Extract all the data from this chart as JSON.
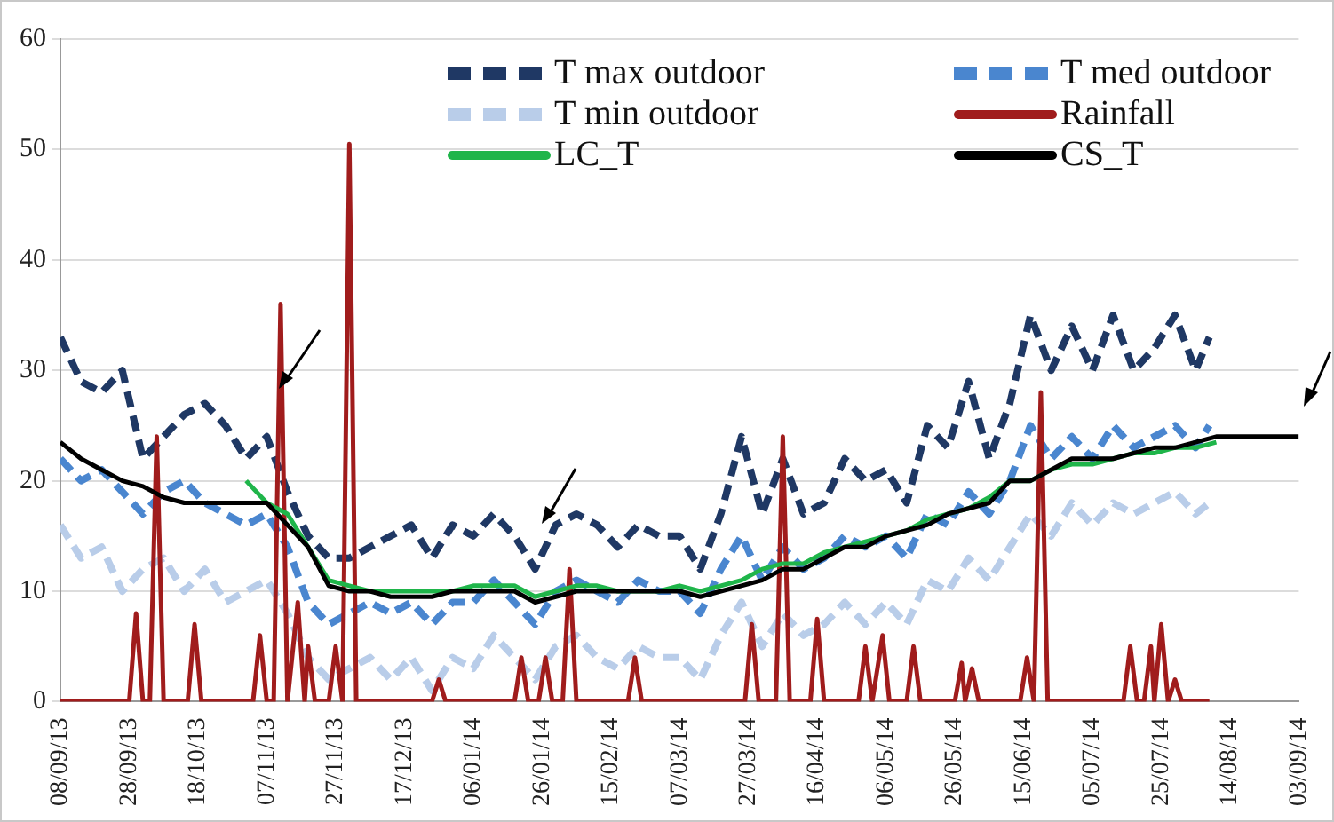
{
  "chart_data": {
    "type": "line",
    "ylim": [
      0,
      60
    ],
    "yticks": [
      0,
      10,
      20,
      30,
      40,
      50,
      60
    ],
    "xlim": [
      "2013-09-08",
      "2014-09-03"
    ],
    "xticks": [
      {
        "value": "2013-09-08",
        "label": "08/09/13"
      },
      {
        "value": "2013-09-28",
        "label": "28/09/13"
      },
      {
        "value": "2013-10-18",
        "label": "18/10/13"
      },
      {
        "value": "2013-11-07",
        "label": "07/11/13"
      },
      {
        "value": "2013-11-27",
        "label": "27/11/13"
      },
      {
        "value": "2013-12-17",
        "label": "17/12/13"
      },
      {
        "value": "2014-01-06",
        "label": "06/01/14"
      },
      {
        "value": "2014-01-26",
        "label": "26/01/14"
      },
      {
        "value": "2014-02-15",
        "label": "15/02/14"
      },
      {
        "value": "2014-03-07",
        "label": "07/03/14"
      },
      {
        "value": "2014-03-27",
        "label": "27/03/14"
      },
      {
        "value": "2014-04-16",
        "label": "16/04/14"
      },
      {
        "value": "2014-05-06",
        "label": "06/05/14"
      },
      {
        "value": "2014-05-26",
        "label": "26/05/14"
      },
      {
        "value": "2014-06-15",
        "label": "15/06/14"
      },
      {
        "value": "2014-07-05",
        "label": "05/07/14"
      },
      {
        "value": "2014-07-25",
        "label": "25/07/14"
      },
      {
        "value": "2014-08-14",
        "label": "14/08/14"
      },
      {
        "value": "2014-09-03",
        "label": "03/09/14"
      }
    ],
    "grid": "y",
    "legend": "top right",
    "marker": "none",
    "x": [
      "2013-09-08",
      "2013-09-14",
      "2013-09-20",
      "2013-09-26",
      "2013-10-02",
      "2013-10-08",
      "2013-10-14",
      "2013-10-20",
      "2013-10-26",
      "2013-11-01",
      "2013-11-07",
      "2013-11-13",
      "2013-11-19",
      "2013-11-25",
      "2013-12-01",
      "2013-12-07",
      "2013-12-13",
      "2013-12-19",
      "2013-12-25",
      "2013-12-31",
      "2014-01-06",
      "2014-01-12",
      "2014-01-18",
      "2014-01-24",
      "2014-01-30",
      "2014-02-05",
      "2014-02-11",
      "2014-02-17",
      "2014-02-23",
      "2014-03-01",
      "2014-03-07",
      "2014-03-13",
      "2014-03-19",
      "2014-03-25",
      "2014-03-31",
      "2014-04-06",
      "2014-04-12",
      "2014-04-18",
      "2014-04-24",
      "2014-04-30",
      "2014-05-06",
      "2014-05-12",
      "2014-05-18",
      "2014-05-24",
      "2014-05-30",
      "2014-06-05",
      "2014-06-11",
      "2014-06-17",
      "2014-06-23",
      "2014-06-29",
      "2014-07-05",
      "2014-07-11",
      "2014-07-17",
      "2014-07-23",
      "2014-07-29",
      "2014-08-04",
      "2014-08-08"
    ],
    "series": [
      {
        "name": "T max outdoor",
        "color": "#1f3864",
        "line_style": "dashed",
        "values": [
          33,
          29,
          28,
          30,
          22,
          24,
          26,
          27,
          25,
          22,
          24,
          19,
          15,
          13,
          13,
          14,
          15,
          16,
          13,
          16,
          15,
          17,
          15,
          12,
          16,
          17,
          16,
          14,
          16,
          15,
          15,
          12,
          17,
          24,
          17,
          22,
          17,
          18,
          22,
          20,
          21,
          18,
          25,
          23,
          29,
          22,
          27,
          35,
          30,
          34,
          30,
          35,
          30,
          32,
          35,
          30,
          33
        ]
      },
      {
        "name": "T med outdoor",
        "color": "#4a86cf",
        "line_style": "dashed",
        "values": [
          22,
          20,
          21,
          19,
          17,
          19,
          20,
          18,
          17,
          16,
          17,
          14,
          9,
          7,
          8,
          9,
          8,
          9,
          7,
          9,
          9,
          11,
          9,
          7,
          10,
          11,
          10,
          9,
          11,
          10,
          10,
          8,
          12,
          15,
          11,
          14,
          12,
          13,
          15,
          14,
          15,
          13,
          17,
          16,
          19,
          17,
          20,
          25,
          22,
          24,
          22,
          25,
          23,
          24,
          25,
          23,
          25
        ]
      },
      {
        "name": "T min outdoor",
        "color": "#b9cde9",
        "line_style": "dashed",
        "values": [
          16,
          13,
          14,
          10,
          12,
          13,
          10,
          12,
          9,
          10,
          11,
          8,
          4,
          2,
          3,
          4,
          2,
          4,
          1,
          4,
          3,
          6,
          4,
          2,
          5,
          6,
          4,
          3,
          5,
          4,
          4,
          2,
          6,
          9,
          5,
          8,
          6,
          7,
          9,
          7,
          9,
          7,
          11,
          10,
          13,
          11,
          14,
          17,
          15,
          18,
          16,
          18,
          17,
          18,
          19,
          17,
          18
        ]
      },
      {
        "name": "Rainfall",
        "color": "#a01c1c",
        "line_style": "solid",
        "x": [
          "2013-09-08",
          "2013-09-28",
          "2013-09-30",
          "2013-10-02",
          "2013-10-04",
          "2013-10-06",
          "2013-10-08",
          "2013-10-15",
          "2013-10-17",
          "2013-10-19",
          "2013-11-03",
          "2013-11-05",
          "2013-11-07",
          "2013-11-09",
          "2013-11-11",
          "2013-11-13",
          "2013-11-16",
          "2013-11-18",
          "2013-11-19",
          "2013-11-21",
          "2013-11-25",
          "2013-11-27",
          "2013-11-29",
          "2013-12-01",
          "2013-12-03",
          "2013-12-25",
          "2013-12-27",
          "2013-12-29",
          "2014-01-18",
          "2014-01-20",
          "2014-01-22",
          "2014-01-25",
          "2014-01-27",
          "2014-01-29",
          "2014-02-01",
          "2014-02-03",
          "2014-02-05",
          "2014-02-20",
          "2014-02-22",
          "2014-02-24",
          "2014-03-26",
          "2014-03-28",
          "2014-03-30",
          "2014-04-04",
          "2014-04-06",
          "2014-04-08",
          "2014-04-14",
          "2014-04-16",
          "2014-04-18",
          "2014-04-28",
          "2014-04-30",
          "2014-05-02",
          "2014-05-05",
          "2014-05-07",
          "2014-05-12",
          "2014-05-14",
          "2014-05-16",
          "2014-05-26",
          "2014-05-28",
          "2014-05-29",
          "2014-05-31",
          "2014-06-02",
          "2014-06-14",
          "2014-06-16",
          "2014-06-18",
          "2014-06-20",
          "2014-06-22",
          "2014-07-14",
          "2014-07-16",
          "2014-07-18",
          "2014-07-20",
          "2014-07-22",
          "2014-07-23",
          "2014-07-25",
          "2014-07-27",
          "2014-07-29",
          "2014-07-31",
          "2014-08-08"
        ],
        "values": [
          0,
          0,
          8,
          0,
          0,
          24,
          0,
          0,
          7,
          0,
          0,
          6,
          0,
          0,
          36,
          0,
          9,
          0,
          5,
          0,
          0,
          5,
          0,
          50.5,
          0,
          0,
          2,
          0,
          0,
          4,
          0,
          0,
          4,
          0,
          0,
          12,
          0,
          0,
          4,
          0,
          0,
          7,
          0,
          0,
          24,
          0,
          0,
          7.5,
          0,
          0,
          5,
          0,
          6,
          0,
          0,
          5,
          0,
          0,
          3.5,
          0,
          3,
          0,
          0,
          4,
          0,
          28,
          0,
          0,
          5,
          0,
          0,
          5,
          0,
          7,
          0,
          2,
          0,
          0
        ]
      },
      {
        "name": "LC_T",
        "color": "#1fb54a",
        "line_style": "solid",
        "x": [
          "2013-11-01",
          "2013-11-07",
          "2013-11-13",
          "2013-11-19",
          "2013-11-25",
          "2013-12-01",
          "2013-12-07",
          "2013-12-13",
          "2013-12-19",
          "2013-12-25",
          "2013-12-31",
          "2014-01-06",
          "2014-01-12",
          "2014-01-18",
          "2014-01-24",
          "2014-01-30",
          "2014-02-05",
          "2014-02-11",
          "2014-02-17",
          "2014-02-23",
          "2014-03-01",
          "2014-03-07",
          "2014-03-13",
          "2014-03-19",
          "2014-03-25",
          "2014-03-31",
          "2014-04-06",
          "2014-04-12",
          "2014-04-18",
          "2014-04-24",
          "2014-04-30",
          "2014-05-06",
          "2014-05-12",
          "2014-05-18",
          "2014-05-24",
          "2014-05-30",
          "2014-06-05",
          "2014-06-11",
          "2014-06-17",
          "2014-06-23",
          "2014-06-29",
          "2014-07-05",
          "2014-07-11",
          "2014-07-17",
          "2014-07-23",
          "2014-07-29",
          "2014-08-04",
          "2014-08-10"
        ],
        "values": [
          20,
          18,
          17,
          14,
          11,
          10.5,
          10,
          10,
          10,
          10,
          10,
          10.5,
          10.5,
          10.5,
          9.5,
          10,
          10.5,
          10.5,
          10,
          10,
          10,
          10.5,
          10,
          10.5,
          11,
          12,
          12.5,
          12.5,
          13.5,
          14,
          14.5,
          15,
          15.5,
          16.5,
          17,
          17.5,
          18.5,
          20,
          20,
          21,
          21.5,
          21.5,
          22,
          22.5,
          22.5,
          23,
          23,
          23.5
        ]
      },
      {
        "name": "CS_T",
        "color": "#000000",
        "line_style": "solid",
        "x": [
          "2013-09-08",
          "2013-09-14",
          "2013-09-20",
          "2013-09-26",
          "2013-10-02",
          "2013-10-08",
          "2013-10-14",
          "2013-10-20",
          "2013-10-26",
          "2013-11-01",
          "2013-11-07",
          "2013-11-13",
          "2013-11-19",
          "2013-11-25",
          "2013-12-01",
          "2013-12-07",
          "2013-12-13",
          "2013-12-19",
          "2013-12-25",
          "2013-12-31",
          "2014-01-06",
          "2014-01-12",
          "2014-01-18",
          "2014-01-24",
          "2014-01-30",
          "2014-02-05",
          "2014-02-11",
          "2014-02-17",
          "2014-02-23",
          "2014-03-01",
          "2014-03-07",
          "2014-03-13",
          "2014-03-19",
          "2014-03-25",
          "2014-03-31",
          "2014-04-06",
          "2014-04-12",
          "2014-04-18",
          "2014-04-24",
          "2014-04-30",
          "2014-05-06",
          "2014-05-12",
          "2014-05-18",
          "2014-05-24",
          "2014-05-30",
          "2014-06-05",
          "2014-06-11",
          "2014-06-17",
          "2014-06-23",
          "2014-06-29",
          "2014-07-05",
          "2014-07-11",
          "2014-07-17",
          "2014-07-23",
          "2014-07-29",
          "2014-08-04",
          "2014-08-10",
          "2014-08-16",
          "2014-08-22",
          "2014-08-28",
          "2014-09-03"
        ],
        "values": [
          23.5,
          22,
          21,
          20,
          19.5,
          18.5,
          18,
          18,
          18,
          18,
          18,
          16,
          14,
          10.5,
          10,
          10,
          9.5,
          9.5,
          9.5,
          10,
          10,
          10,
          10,
          9,
          9.5,
          10,
          10,
          10,
          10,
          10,
          10,
          9.5,
          10,
          10.5,
          11,
          12,
          12,
          13,
          14,
          14,
          15,
          15.5,
          16,
          17,
          17.5,
          18,
          20,
          20,
          21,
          22,
          22,
          22,
          22.5,
          23,
          23,
          23.5,
          24,
          24,
          24,
          24,
          24
        ]
      }
    ]
  }
}
